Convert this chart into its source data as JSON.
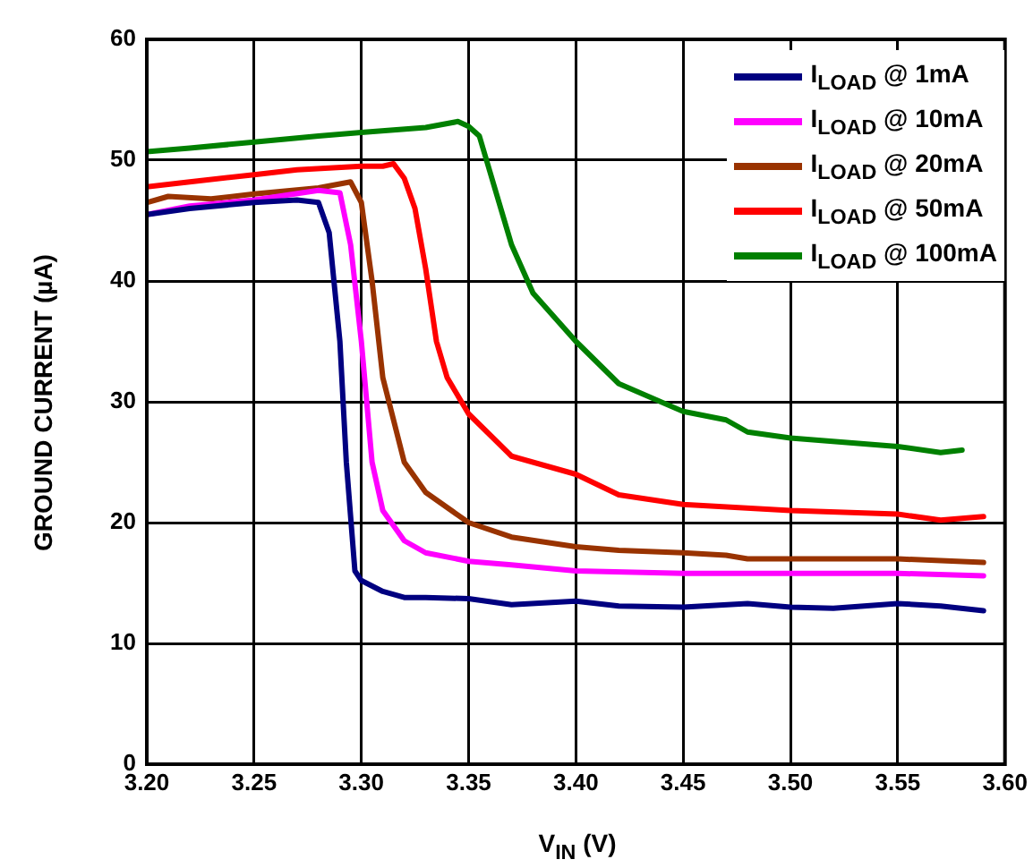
{
  "chart_data": {
    "type": "line",
    "xlabel": "V$_{IN}$ (V)",
    "ylabel": "GROUND CURRENT (µA)",
    "xlim": [
      3.2,
      3.6
    ],
    "xticks": [
      {
        "value": 3.2,
        "label": "3.20"
      },
      {
        "value": 3.25,
        "label": "3.25"
      },
      {
        "value": 3.3,
        "label": "3.30"
      },
      {
        "value": 3.35,
        "label": "3.35"
      },
      {
        "value": 3.4,
        "label": "3.40"
      },
      {
        "value": 3.45,
        "label": "3.45"
      },
      {
        "value": 3.5,
        "label": "3.50"
      },
      {
        "value": 3.55,
        "label": "3.55"
      },
      {
        "value": 3.6,
        "label": "3.60"
      }
    ],
    "ylim": [
      0,
      60
    ],
    "yticks": [
      0,
      10,
      20,
      30,
      40,
      50,
      60
    ],
    "grid": true,
    "legend": "top right",
    "marker": "none",
    "line_style": "solid",
    "series": [
      {
        "name": "I$_{LOAD}$ @ 1mA",
        "color": "#000080",
        "x": [
          3.2,
          3.22,
          3.25,
          3.27,
          3.28,
          3.285,
          3.29,
          3.293,
          3.297,
          3.3,
          3.31,
          3.32,
          3.33,
          3.35,
          3.37,
          3.4,
          3.42,
          3.45,
          3.48,
          3.5,
          3.52,
          3.55,
          3.57,
          3.59
        ],
        "values": [
          45.5,
          46,
          46.5,
          46.7,
          46.5,
          44,
          35,
          25,
          16,
          15.2,
          14.3,
          13.8,
          13.8,
          13.7,
          13.2,
          13.5,
          13.1,
          13,
          13.3,
          13,
          12.9,
          13.3,
          13.1,
          12.7
        ]
      },
      {
        "name": "I$_{LOAD}$ @ 10mA",
        "color": "#ff00ff",
        "x": [
          3.2,
          3.22,
          3.25,
          3.28,
          3.29,
          3.295,
          3.3,
          3.305,
          3.31,
          3.32,
          3.33,
          3.35,
          3.37,
          3.4,
          3.45,
          3.5,
          3.55,
          3.59
        ],
        "values": [
          45.5,
          46.2,
          46.7,
          47.5,
          47.3,
          43,
          35,
          25,
          21,
          18.5,
          17.5,
          16.8,
          16.5,
          16,
          15.8,
          15.8,
          15.8,
          15.6
        ]
      },
      {
        "name": "I$_{LOAD}$ @ 20mA",
        "color": "#993300",
        "x": [
          3.2,
          3.21,
          3.23,
          3.25,
          3.28,
          3.295,
          3.3,
          3.305,
          3.31,
          3.32,
          3.33,
          3.35,
          3.37,
          3.4,
          3.42,
          3.45,
          3.47,
          3.48,
          3.5,
          3.55,
          3.59
        ],
        "values": [
          46.5,
          47,
          46.8,
          47.2,
          47.7,
          48.2,
          46.5,
          40,
          32,
          25,
          22.5,
          20,
          18.8,
          18,
          17.7,
          17.5,
          17.3,
          17,
          17,
          17,
          16.7
        ]
      },
      {
        "name": "I$_{LOAD}$ @ 50mA",
        "color": "#ff0000",
        "x": [
          3.2,
          3.22,
          3.25,
          3.27,
          3.3,
          3.31,
          3.315,
          3.32,
          3.325,
          3.33,
          3.335,
          3.34,
          3.35,
          3.37,
          3.4,
          3.42,
          3.45,
          3.5,
          3.55,
          3.57,
          3.59
        ],
        "values": [
          47.8,
          48.2,
          48.8,
          49.2,
          49.5,
          49.5,
          49.7,
          48.5,
          46,
          41,
          35,
          32,
          29,
          25.5,
          24,
          22.3,
          21.5,
          21,
          20.7,
          20.2,
          20.5
        ]
      },
      {
        "name": "I$_{LOAD}$ @ 100mA",
        "color": "#008000",
        "x": [
          3.2,
          3.22,
          3.25,
          3.28,
          3.3,
          3.33,
          3.345,
          3.35,
          3.355,
          3.36,
          3.37,
          3.38,
          3.4,
          3.42,
          3.45,
          3.47,
          3.48,
          3.5,
          3.55,
          3.57,
          3.58
        ],
        "values": [
          50.7,
          51,
          51.5,
          52,
          52.3,
          52.7,
          53.2,
          52.8,
          52,
          49,
          43,
          39,
          35,
          31.5,
          29.2,
          28.5,
          27.5,
          27,
          26.3,
          25.8,
          26
        ]
      }
    ]
  }
}
